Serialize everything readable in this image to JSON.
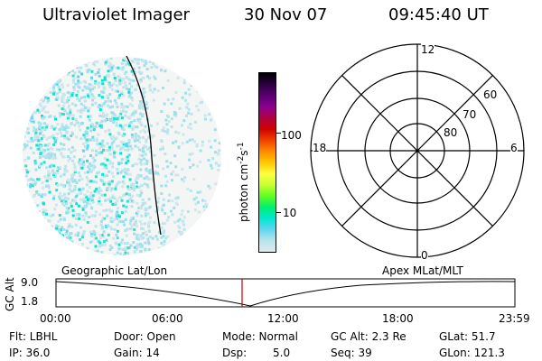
{
  "header": {
    "instrument": "Ultraviolet Imager",
    "date": "30 Nov 07",
    "time": "09:45:40 UT"
  },
  "colorbar": {
    "unit_text": "photon cm",
    "unit_sup1": "-2",
    "unit_mid": "s",
    "unit_sup2": "-1",
    "tick_100": "100",
    "tick_10": "10",
    "colors": [
      "#000000",
      "#2b0040",
      "#5a0070",
      "#8a0090",
      "#b00040",
      "#d00000",
      "#f04000",
      "#ff8a00",
      "#ffc800",
      "#ffff40",
      "#c8ff30",
      "#60ff20",
      "#00f070",
      "#00e8d0",
      "#60d8f0",
      "#b8e4ec",
      "#e0e8ec"
    ]
  },
  "polar_plot": {
    "labels": {
      "noon": "12",
      "midnight": "0",
      "dawn": "6",
      "dusk": "18"
    },
    "lat_labels": [
      "60",
      "70",
      "80"
    ]
  },
  "orbit_panel": {
    "ylabel": "GC Alt",
    "ymax_label": "9.0",
    "ymin_label": "1.8",
    "left_title": "Geographic Lat/Lon",
    "right_title": "Apex MLat/MLT",
    "time_ticks": [
      "00:00",
      "06:00",
      "12:00",
      "18:00",
      "23:59"
    ],
    "accent_color": "#c00000"
  },
  "status": {
    "flt": "Flt: LBHL",
    "ip": "IP: 36.0",
    "door": "Door: Open",
    "gain": "Gain: 14",
    "mode": "Mode: Normal",
    "dsp_label": "Dsp:",
    "dsp_value": "5.0",
    "gcalt": "GC Alt: 2.3 Re",
    "seq": "Seq: 39",
    "glat": "GLat: 51.7",
    "glon": "GLon: 121.3"
  }
}
